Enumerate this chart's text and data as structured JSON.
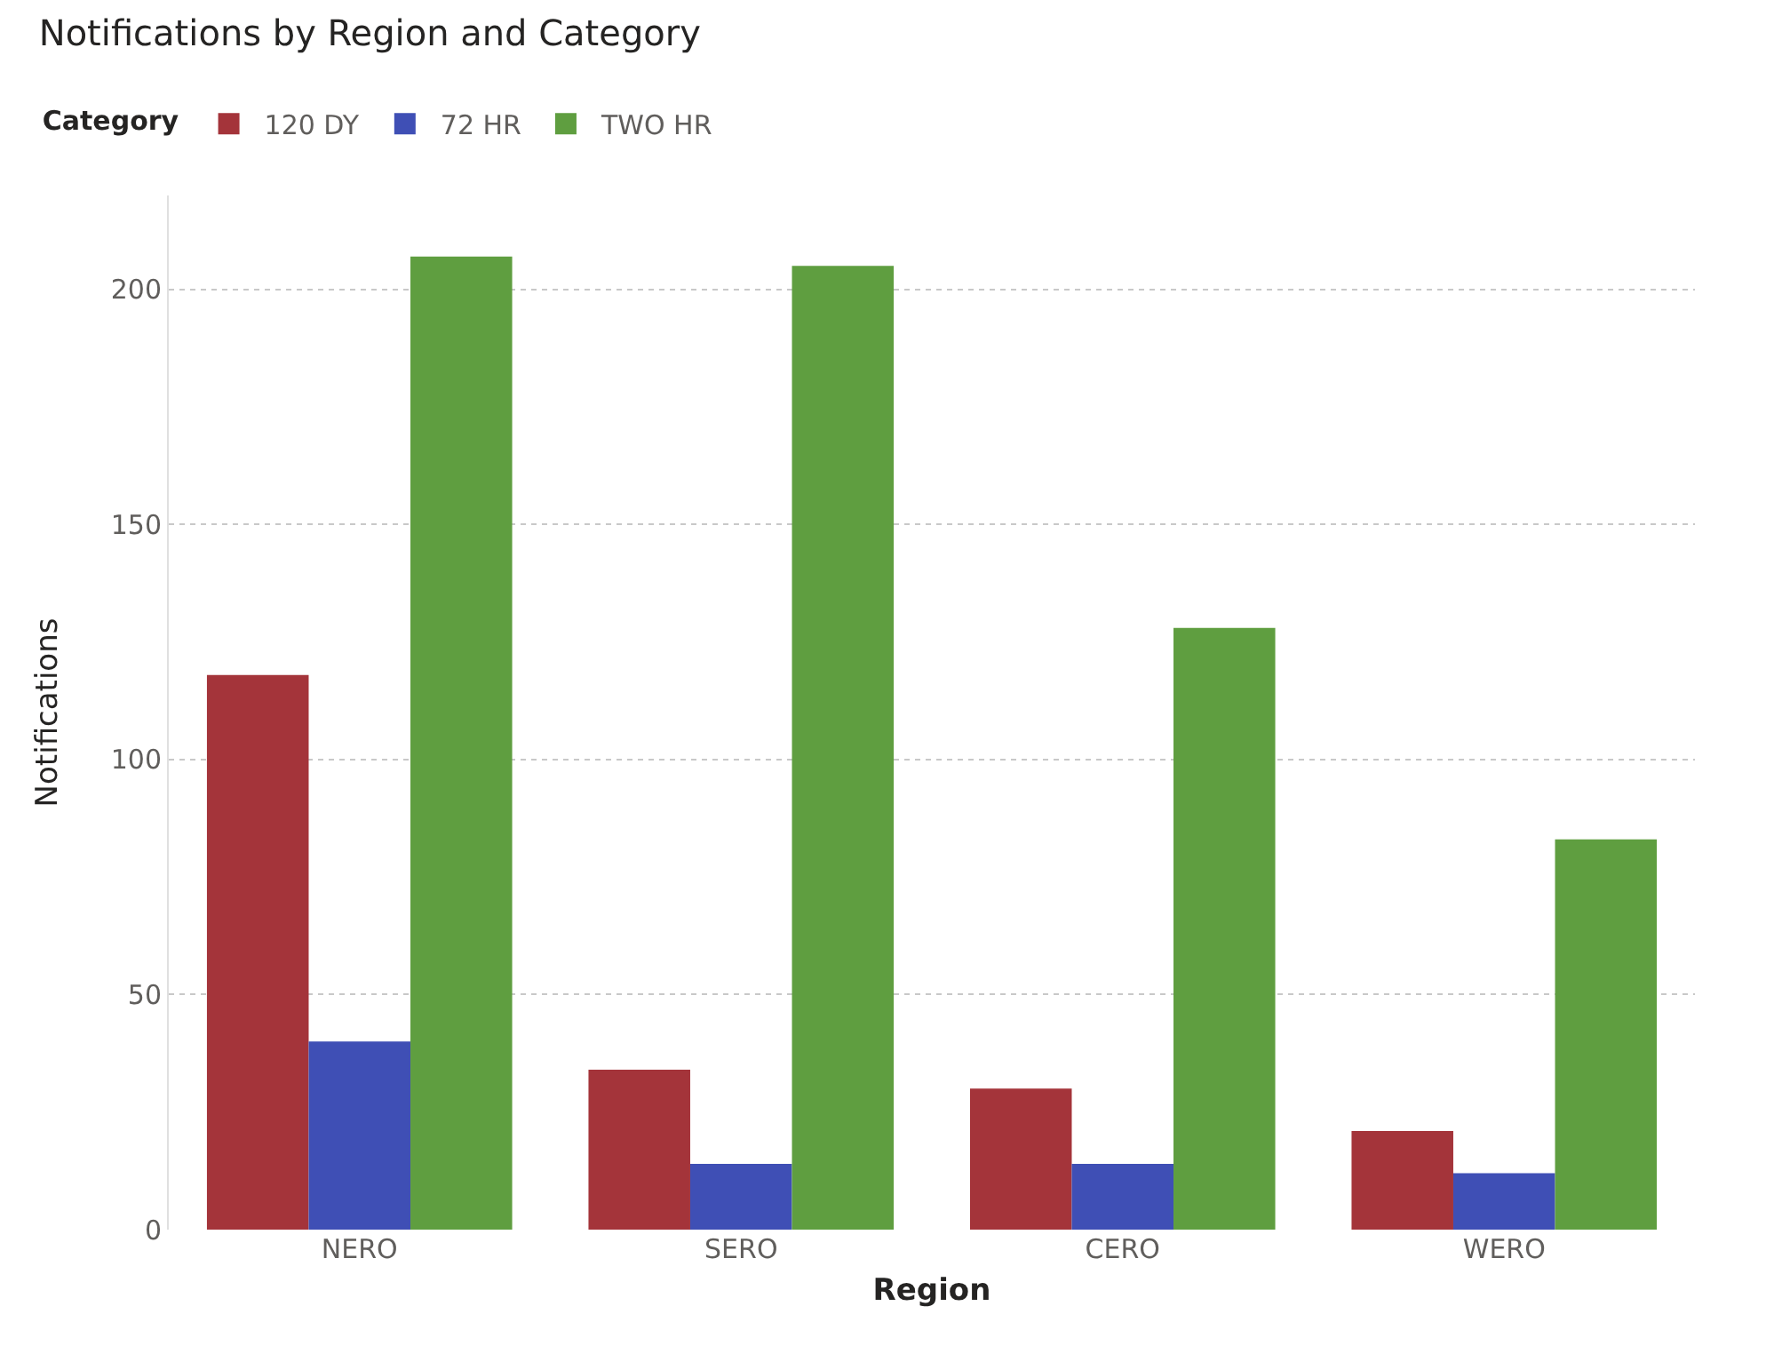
{
  "chart_data": {
    "type": "bar",
    "title": "Notifications by Region and Category",
    "xlabel": "Region",
    "ylabel": "Notifications",
    "legend_title": "Category",
    "categories": [
      "NERO",
      "SERO",
      "CERO",
      "WERO"
    ],
    "series": [
      {
        "name": "120 DY",
        "color": "#a4343a",
        "values": [
          118,
          34,
          30,
          21
        ]
      },
      {
        "name": "72 HR",
        "color": "#3f4fb5",
        "values": [
          40,
          14,
          14,
          12
        ]
      },
      {
        "name": "TWO HR",
        "color": "#5f9e40",
        "values": [
          207,
          205,
          128,
          83
        ]
      }
    ],
    "ylim": [
      0,
      220
    ],
    "yticks": [
      0,
      50,
      100,
      150,
      200
    ],
    "grid": "y",
    "legend": "top left"
  }
}
